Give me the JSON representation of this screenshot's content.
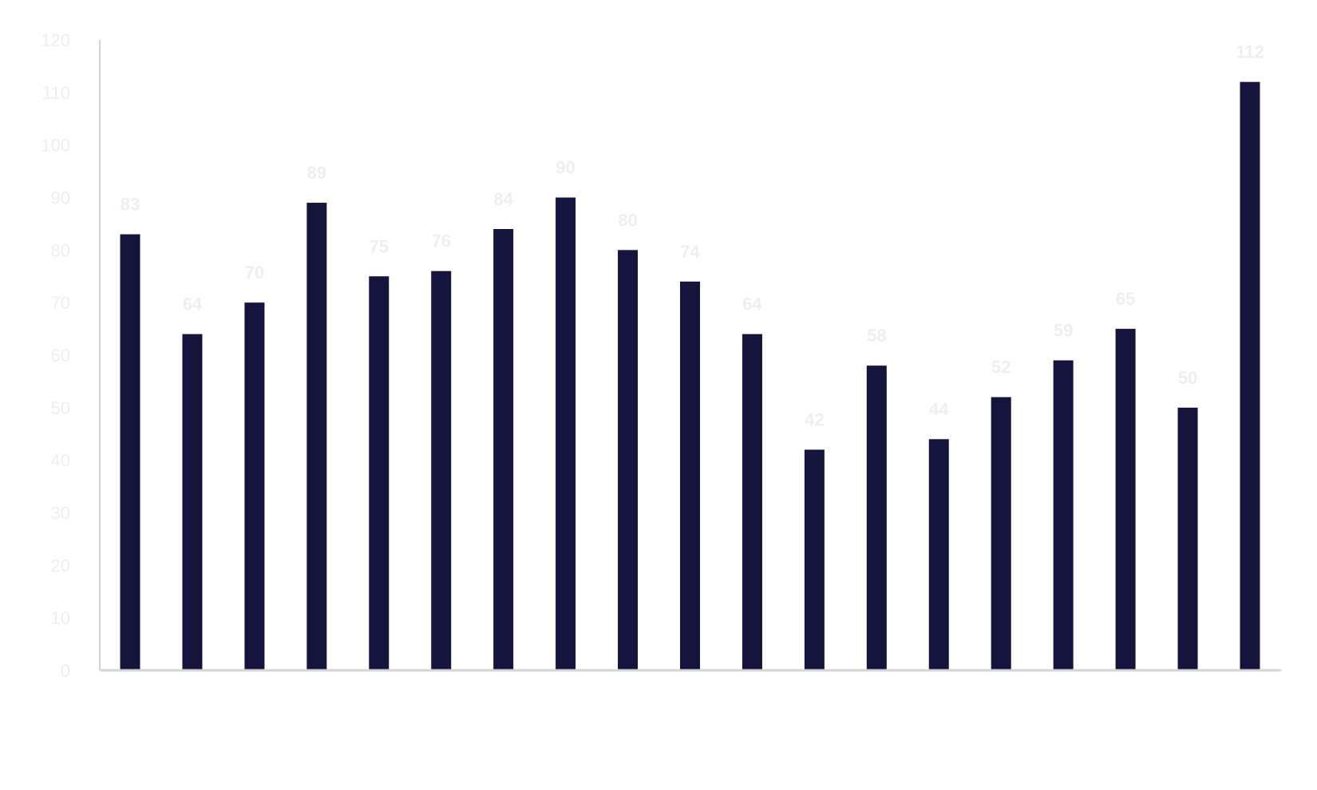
{
  "chart_data": {
    "type": "bar",
    "categories": [
      "",
      "",
      "",
      "",
      "",
      "",
      "",
      "",
      "",
      "",
      "",
      "",
      "",
      "",
      "",
      "",
      "",
      "",
      ""
    ],
    "values": [
      83,
      64,
      70,
      89,
      75,
      76,
      84,
      90,
      80,
      74,
      64,
      42,
      58,
      44,
      52,
      59,
      65,
      50,
      112
    ],
    "ylim": [
      0,
      120
    ],
    "yticks": [
      0,
      10,
      20,
      30,
      40,
      50,
      60,
      70,
      80,
      90,
      100,
      110,
      120
    ],
    "grid": false,
    "colors": {
      "bar": "#15143d",
      "axis": "#d4d4d4"
    }
  }
}
